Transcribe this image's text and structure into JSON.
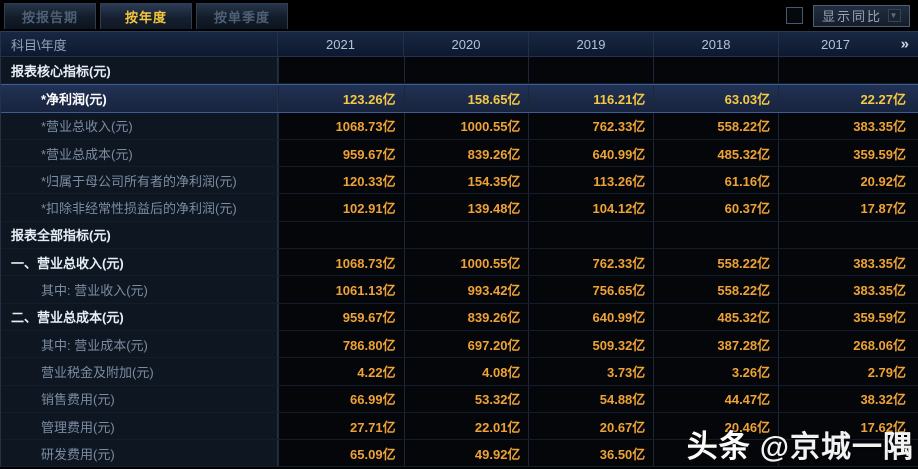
{
  "tabs": [
    {
      "label": "按报告期",
      "active": false
    },
    {
      "label": "按年度",
      "active": true
    },
    {
      "label": "按单季度",
      "active": false
    }
  ],
  "toolbar": {
    "show_yoy_label": "显示同比",
    "show_yoy_checked": false,
    "dropdown_icon": "chevron-down-icon"
  },
  "table": {
    "corner_header": "科目\\年度",
    "year_columns": [
      "2021",
      "2020",
      "2019",
      "2018",
      "2017"
    ],
    "more_columns_icon": "chevron-double-right-icon",
    "more_columns_glyph": "»",
    "rows": [
      {
        "label": "报表核心指标(元)",
        "type": "section",
        "indent": 0,
        "values": [
          "",
          "",
          "",
          "",
          ""
        ]
      },
      {
        "label": "*净利润(元)",
        "type": "highlight",
        "indent": 1,
        "values": [
          "123.26亿",
          "158.65亿",
          "116.21亿",
          "63.03亿",
          "22.27亿"
        ]
      },
      {
        "label": "*营业总收入(元)",
        "type": "normal",
        "indent": 1,
        "values": [
          "1068.73亿",
          "1000.55亿",
          "762.33亿",
          "558.22亿",
          "383.35亿"
        ]
      },
      {
        "label": "*营业总成本(元)",
        "type": "normal",
        "indent": 1,
        "values": [
          "959.67亿",
          "839.26亿",
          "640.99亿",
          "485.32亿",
          "359.59亿"
        ]
      },
      {
        "label": "*归属于母公司所有者的净利润(元)",
        "type": "normal",
        "indent": 1,
        "values": [
          "120.33亿",
          "154.35亿",
          "113.26亿",
          "61.16亿",
          "20.92亿"
        ]
      },
      {
        "label": "*扣除非经常性损益后的净利润(元)",
        "type": "normal",
        "indent": 1,
        "values": [
          "102.91亿",
          "139.48亿",
          "104.12亿",
          "60.37亿",
          "17.87亿"
        ]
      },
      {
        "label": "报表全部指标(元)",
        "type": "section",
        "indent": 0,
        "values": [
          "",
          "",
          "",
          "",
          ""
        ]
      },
      {
        "label": "一、营业总收入(元)",
        "type": "bold",
        "indent": 0,
        "values": [
          "1068.73亿",
          "1000.55亿",
          "762.33亿",
          "558.22亿",
          "383.35亿"
        ]
      },
      {
        "label": "其中: 营业收入(元)",
        "type": "normal",
        "indent": 1,
        "values": [
          "1061.13亿",
          "993.42亿",
          "756.65亿",
          "558.22亿",
          "383.35亿"
        ]
      },
      {
        "label": "二、营业总成本(元)",
        "type": "bold",
        "indent": 0,
        "values": [
          "959.67亿",
          "839.26亿",
          "640.99亿",
          "485.32亿",
          "359.59亿"
        ]
      },
      {
        "label": "其中: 营业成本(元)",
        "type": "normal",
        "indent": 1,
        "values": [
          "786.80亿",
          "697.20亿",
          "509.32亿",
          "387.28亿",
          "268.06亿"
        ]
      },
      {
        "label": "营业税金及附加(元)",
        "type": "normal",
        "indent": 1,
        "values": [
          "4.22亿",
          "4.08亿",
          "3.73亿",
          "3.26亿",
          "2.79亿"
        ]
      },
      {
        "label": "销售费用(元)",
        "type": "normal",
        "indent": 1,
        "values": [
          "66.99亿",
          "53.32亿",
          "54.88亿",
          "44.47亿",
          "38.32亿"
        ]
      },
      {
        "label": "管理费用(元)",
        "type": "normal",
        "indent": 1,
        "values": [
          "27.71亿",
          "22.01亿",
          "20.67亿",
          "20.46亿",
          "17.62亿"
        ]
      },
      {
        "label": "研发费用(元)",
        "type": "normal",
        "indent": 1,
        "values": [
          "65.09亿",
          "49.92亿",
          "36.50亿",
          "",
          ""
        ]
      }
    ]
  },
  "watermark": {
    "brand": "头条",
    "handle": "@京城一隅"
  },
  "colors": {
    "value_orange": "#efa236",
    "value_highlight_gold": "#f6c944",
    "tab_active_text": "#f5c63c",
    "highlight_row_bg": "#1d2b4b",
    "header_bg": "#13213a",
    "label_column_bg": "#0e1622"
  }
}
